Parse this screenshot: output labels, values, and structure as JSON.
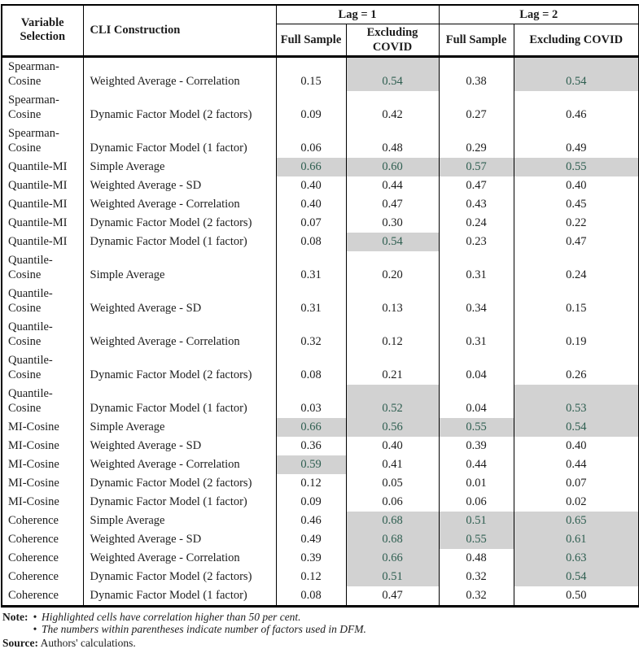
{
  "table": {
    "headers": {
      "variable_selection": "Variable Selection",
      "cli_construction": "CLI Construction",
      "lag1": "Lag = 1",
      "lag2": "Lag = 2",
      "full_sample": "Full Sample",
      "excluding_covid": "Excluding COVID"
    },
    "highlight_threshold": 0.5,
    "rows": [
      {
        "variable": "Spearman-Cosine",
        "construction": "Weighted Average - Correlation",
        "values": [
          "0.15",
          "0.54",
          "0.38",
          "0.54"
        ]
      },
      {
        "variable": "Spearman-Cosine",
        "construction": "Dynamic Factor Model (2 factors)",
        "values": [
          "0.09",
          "0.42",
          "0.27",
          "0.46"
        ]
      },
      {
        "variable": "Spearman-Cosine",
        "construction": "Dynamic Factor Model (1 factor)",
        "values": [
          "0.06",
          "0.48",
          "0.29",
          "0.49"
        ]
      },
      {
        "variable": "Quantile-MI",
        "construction": "Simple Average",
        "values": [
          "0.66",
          "0.60",
          "0.57",
          "0.55"
        ]
      },
      {
        "variable": "Quantile-MI",
        "construction": "Weighted Average - SD",
        "values": [
          "0.40",
          "0.44",
          "0.47",
          "0.40"
        ]
      },
      {
        "variable": "Quantile-MI",
        "construction": "Weighted Average - Correlation",
        "values": [
          "0.40",
          "0.47",
          "0.43",
          "0.45"
        ]
      },
      {
        "variable": "Quantile-MI",
        "construction": "Dynamic Factor Model (2 factors)",
        "values": [
          "0.07",
          "0.30",
          "0.24",
          "0.22"
        ]
      },
      {
        "variable": "Quantile-MI",
        "construction": "Dynamic Factor Model (1 factor)",
        "values": [
          "0.08",
          "0.54",
          "0.23",
          "0.47"
        ]
      },
      {
        "variable": "Quantile-Cosine",
        "construction": "Simple Average",
        "values": [
          "0.31",
          "0.20",
          "0.31",
          "0.24"
        ]
      },
      {
        "variable": "Quantile-Cosine",
        "construction": "Weighted Average - SD",
        "values": [
          "0.31",
          "0.13",
          "0.34",
          "0.15"
        ]
      },
      {
        "variable": "Quantile-Cosine",
        "construction": "Weighted Average - Correlation",
        "values": [
          "0.32",
          "0.12",
          "0.31",
          "0.19"
        ]
      },
      {
        "variable": "Quantile-Cosine",
        "construction": "Dynamic Factor Model (2 factors)",
        "values": [
          "0.08",
          "0.21",
          "0.04",
          "0.26"
        ]
      },
      {
        "variable": "Quantile-Cosine",
        "construction": "Dynamic Factor Model (1 factor)",
        "values": [
          "0.03",
          "0.52",
          "0.04",
          "0.53"
        ]
      },
      {
        "variable": "MI-Cosine",
        "construction": "Simple Average",
        "values": [
          "0.66",
          "0.56",
          "0.55",
          "0.54"
        ]
      },
      {
        "variable": "MI-Cosine",
        "construction": "Weighted Average - SD",
        "values": [
          "0.36",
          "0.40",
          "0.39",
          "0.40"
        ]
      },
      {
        "variable": "MI-Cosine",
        "construction": "Weighted Average - Correlation",
        "values": [
          "0.59",
          "0.41",
          "0.44",
          "0.44"
        ]
      },
      {
        "variable": "MI-Cosine",
        "construction": "Dynamic Factor Model (2 factors)",
        "values": [
          "0.12",
          "0.05",
          "0.01",
          "0.07"
        ]
      },
      {
        "variable": "MI-Cosine",
        "construction": "Dynamic Factor Model (1 factor)",
        "values": [
          "0.09",
          "0.06",
          "0.06",
          "0.02"
        ]
      },
      {
        "variable": "Coherence",
        "construction": "Simple Average",
        "values": [
          "0.46",
          "0.68",
          "0.51",
          "0.65"
        ]
      },
      {
        "variable": "Coherence",
        "construction": "Weighted Average - SD",
        "values": [
          "0.49",
          "0.68",
          "0.55",
          "0.61"
        ]
      },
      {
        "variable": "Coherence",
        "construction": "Weighted Average - Correlation",
        "values": [
          "0.39",
          "0.66",
          "0.48",
          "0.63"
        ]
      },
      {
        "variable": "Coherence",
        "construction": "Dynamic Factor Model (2 factors)",
        "values": [
          "0.12",
          "0.51",
          "0.32",
          "0.54"
        ]
      },
      {
        "variable": "Coherence",
        "construction": "Dynamic Factor Model (1 factor)",
        "values": [
          "0.08",
          "0.47",
          "0.32",
          "0.50"
        ]
      }
    ]
  },
  "notes": {
    "note_label": "Note:",
    "bullet_glyph": "•",
    "bullets": [
      "Highlighted cells have correlation higher than 50 per cent.",
      "The numbers within parentheses indicate number of factors used in DFM."
    ],
    "source_label": "Source:",
    "source_text": "Authors' calculations."
  },
  "colors": {
    "highlight_bg": "#d2d2d2",
    "highlight_text": "#2e5e50",
    "border": "#000000",
    "text": "#1c1c1c"
  }
}
